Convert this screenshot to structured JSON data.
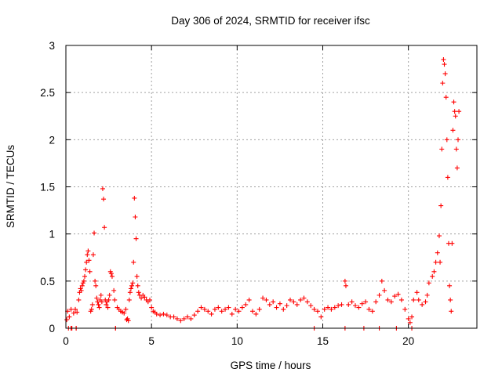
{
  "chart_data": {
    "type": "scatter",
    "title": "Day 306 of 2024, SRMTID for receiver ifsc",
    "xlabel": "GPS time / hours",
    "ylabel": "SRMTID / TECUs",
    "xlim": [
      0,
      24
    ],
    "ylim": [
      0,
      3
    ],
    "xticks": [
      0,
      5,
      10,
      15,
      20
    ],
    "xtick_labels": [
      "0",
      "5",
      "10",
      "15",
      "20"
    ],
    "yticks": [
      0,
      0.5,
      1,
      1.5,
      2,
      2.5,
      3
    ],
    "ytick_labels": [
      "0",
      "0.5",
      "1",
      "1.5",
      "2",
      "2.5",
      "3"
    ],
    "grid": true,
    "marker": "+",
    "marker_color": "#ff0000",
    "series": [
      {
        "name": "SRMTID",
        "points": [
          [
            0.05,
            0.09
          ],
          [
            0.1,
            0.18
          ],
          [
            0.15,
            0.0
          ],
          [
            0.2,
            0.12
          ],
          [
            0.3,
            0.2
          ],
          [
            0.35,
            0.0
          ],
          [
            0.45,
            0.16
          ],
          [
            0.55,
            0.2
          ],
          [
            0.6,
            0.0
          ],
          [
            0.65,
            0.17
          ],
          [
            0.75,
            0.3
          ],
          [
            0.8,
            0.38
          ],
          [
            0.85,
            0.42
          ],
          [
            0.9,
            0.4
          ],
          [
            0.95,
            0.45
          ],
          [
            1.0,
            0.48
          ],
          [
            1.05,
            0.5
          ],
          [
            1.1,
            0.55
          ],
          [
            1.15,
            0.62
          ],
          [
            1.2,
            0.7
          ],
          [
            1.25,
            0.78
          ],
          [
            1.3,
            0.82
          ],
          [
            1.35,
            0.72
          ],
          [
            1.4,
            0.6
          ],
          [
            1.45,
            0.18
          ],
          [
            1.5,
            0.2
          ],
          [
            1.55,
            0.25
          ],
          [
            1.6,
            0.78
          ],
          [
            1.65,
            1.01
          ],
          [
            1.7,
            0.5
          ],
          [
            1.75,
            0.45
          ],
          [
            1.8,
            0.32
          ],
          [
            1.85,
            0.28
          ],
          [
            1.9,
            0.25
          ],
          [
            1.95,
            0.22
          ],
          [
            2.0,
            0.3
          ],
          [
            2.05,
            0.35
          ],
          [
            2.1,
            0.28
          ],
          [
            2.15,
            1.48
          ],
          [
            2.2,
            1.37
          ],
          [
            2.25,
            1.07
          ],
          [
            2.3,
            0.3
          ],
          [
            2.35,
            0.25
          ],
          [
            2.4,
            0.28
          ],
          [
            2.45,
            0.22
          ],
          [
            2.5,
            0.3
          ],
          [
            2.55,
            0.35
          ],
          [
            2.6,
            0.6
          ],
          [
            2.65,
            0.58
          ],
          [
            2.7,
            0.55
          ],
          [
            2.8,
            0.4
          ],
          [
            2.85,
            0.3
          ],
          [
            2.9,
            0.0
          ],
          [
            3.0,
            0.22
          ],
          [
            3.1,
            0.2
          ],
          [
            3.2,
            0.18
          ],
          [
            3.3,
            0.17
          ],
          [
            3.4,
            0.16
          ],
          [
            3.5,
            0.2
          ],
          [
            3.55,
            0.09
          ],
          [
            3.6,
            0.1
          ],
          [
            3.65,
            0.08
          ],
          [
            3.7,
            0.3
          ],
          [
            3.75,
            0.38
          ],
          [
            3.8,
            0.42
          ],
          [
            3.85,
            0.45
          ],
          [
            3.9,
            0.48
          ],
          [
            3.95,
            0.7
          ],
          [
            4.0,
            1.38
          ],
          [
            4.05,
            1.18
          ],
          [
            4.1,
            0.95
          ],
          [
            4.15,
            0.55
          ],
          [
            4.2,
            0.45
          ],
          [
            4.25,
            0.38
          ],
          [
            4.3,
            0.35
          ],
          [
            4.4,
            0.32
          ],
          [
            4.5,
            0.35
          ],
          [
            4.6,
            0.33
          ],
          [
            4.7,
            0.3
          ],
          [
            4.8,
            0.28
          ],
          [
            4.9,
            0.3
          ],
          [
            5.0,
            0.22
          ],
          [
            5.1,
            0.18
          ],
          [
            5.2,
            0.17
          ],
          [
            5.3,
            0.15
          ],
          [
            5.5,
            0.14
          ],
          [
            5.7,
            0.15
          ],
          [
            5.9,
            0.14
          ],
          [
            6.1,
            0.12
          ],
          [
            6.3,
            0.12
          ],
          [
            6.5,
            0.1
          ],
          [
            6.7,
            0.08
          ],
          [
            6.9,
            0.1
          ],
          [
            7.1,
            0.12
          ],
          [
            7.3,
            0.1
          ],
          [
            7.5,
            0.14
          ],
          [
            7.7,
            0.18
          ],
          [
            7.9,
            0.22
          ],
          [
            8.1,
            0.2
          ],
          [
            8.3,
            0.18
          ],
          [
            8.5,
            0.15
          ],
          [
            8.7,
            0.2
          ],
          [
            8.9,
            0.22
          ],
          [
            9.1,
            0.18
          ],
          [
            9.3,
            0.2
          ],
          [
            9.5,
            0.22
          ],
          [
            9.7,
            0.15
          ],
          [
            9.9,
            0.2
          ],
          [
            10.1,
            0.18
          ],
          [
            10.3,
            0.22
          ],
          [
            10.5,
            0.25
          ],
          [
            10.7,
            0.3
          ],
          [
            10.9,
            0.18
          ],
          [
            11.1,
            0.15
          ],
          [
            11.3,
            0.2
          ],
          [
            11.5,
            0.32
          ],
          [
            11.7,
            0.3
          ],
          [
            11.9,
            0.25
          ],
          [
            12.1,
            0.28
          ],
          [
            12.3,
            0.22
          ],
          [
            12.5,
            0.26
          ],
          [
            12.7,
            0.2
          ],
          [
            12.9,
            0.24
          ],
          [
            13.1,
            0.3
          ],
          [
            13.3,
            0.28
          ],
          [
            13.5,
            0.25
          ],
          [
            13.7,
            0.3
          ],
          [
            13.9,
            0.32
          ],
          [
            14.1,
            0.28
          ],
          [
            14.3,
            0.24
          ],
          [
            14.5,
            0.2
          ],
          [
            14.7,
            0.18
          ],
          [
            14.9,
            0.12
          ],
          [
            15.1,
            0.2
          ],
          [
            15.3,
            0.22
          ],
          [
            15.5,
            0.2
          ],
          [
            15.7,
            0.22
          ],
          [
            15.9,
            0.24
          ],
          [
            16.1,
            0.25
          ],
          [
            16.3,
            0.5
          ],
          [
            16.35,
            0.45
          ],
          [
            16.5,
            0.25
          ],
          [
            16.7,
            0.28
          ],
          [
            16.9,
            0.24
          ],
          [
            17.1,
            0.22
          ],
          [
            17.3,
            0.26
          ],
          [
            17.5,
            0.28
          ],
          [
            17.7,
            0.2
          ],
          [
            17.9,
            0.18
          ],
          [
            18.1,
            0.28
          ],
          [
            18.3,
            0.35
          ],
          [
            18.45,
            0.5
          ],
          [
            18.6,
            0.4
          ],
          [
            18.8,
            0.3
          ],
          [
            19.0,
            0.28
          ],
          [
            19.2,
            0.34
          ],
          [
            19.4,
            0.36
          ],
          [
            19.6,
            0.3
          ],
          [
            19.8,
            0.2
          ],
          [
            20.0,
            0.1
          ],
          [
            20.1,
            0.06
          ],
          [
            20.2,
            0.12
          ],
          [
            20.3,
            0.3
          ],
          [
            20.5,
            0.38
          ],
          [
            20.6,
            0.3
          ],
          [
            20.8,
            0.25
          ],
          [
            21.0,
            0.28
          ],
          [
            21.1,
            0.35
          ],
          [
            21.2,
            0.48
          ],
          [
            21.4,
            0.55
          ],
          [
            21.5,
            0.6
          ],
          [
            21.6,
            0.7
          ],
          [
            21.7,
            0.8
          ],
          [
            21.8,
            0.98
          ],
          [
            21.85,
            0.7
          ],
          [
            21.9,
            1.3
          ],
          [
            21.95,
            1.9
          ],
          [
            22.0,
            2.6
          ],
          [
            22.05,
            2.85
          ],
          [
            22.1,
            2.8
          ],
          [
            22.15,
            2.7
          ],
          [
            22.2,
            2.45
          ],
          [
            22.25,
            2.0
          ],
          [
            22.3,
            1.6
          ],
          [
            22.35,
            0.9
          ],
          [
            22.4,
            0.45
          ],
          [
            22.45,
            0.3
          ],
          [
            22.5,
            0.18
          ],
          [
            22.55,
            0.9
          ],
          [
            22.6,
            2.1
          ],
          [
            22.65,
            2.4
          ],
          [
            22.7,
            2.3
          ],
          [
            22.75,
            2.25
          ],
          [
            22.8,
            1.9
          ],
          [
            22.85,
            1.7
          ],
          [
            22.9,
            2.0
          ],
          [
            22.95,
            2.3
          ],
          [
            0.3,
            0.0
          ],
          [
            0.6,
            0.0
          ],
          [
            2.9,
            0.0
          ],
          [
            14.5,
            0.0
          ],
          [
            16.3,
            0.0
          ],
          [
            17.4,
            0.0
          ],
          [
            18.3,
            0.0
          ],
          [
            19.3,
            0.0
          ],
          [
            20.2,
            0.0
          ]
        ]
      }
    ]
  }
}
